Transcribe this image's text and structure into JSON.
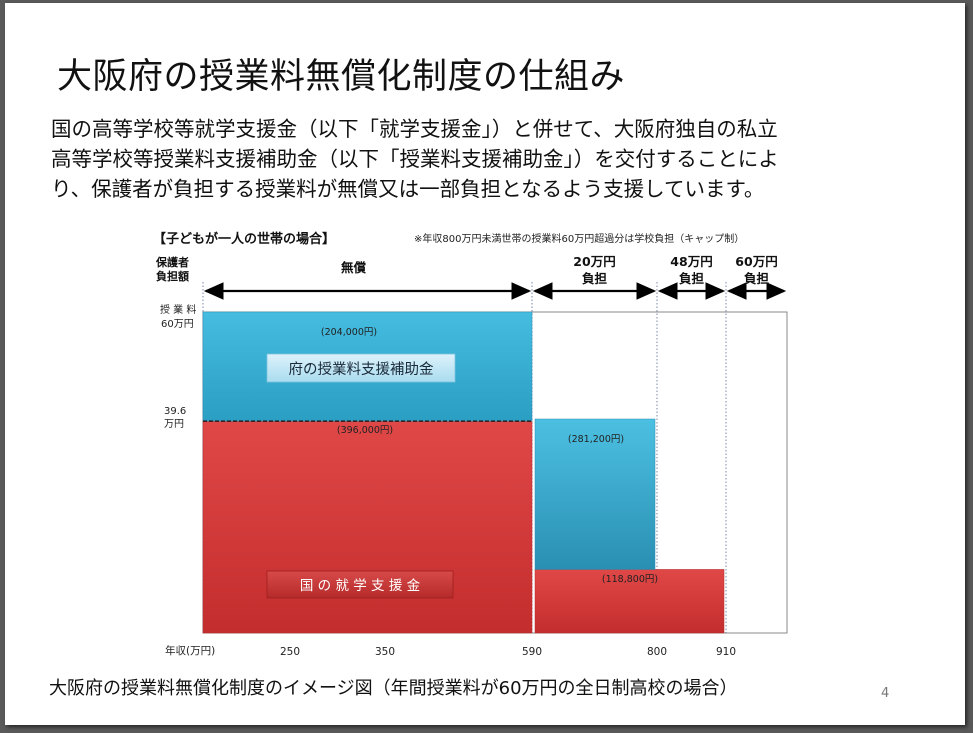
{
  "slide": {
    "title": "大阪府の授業料無償化制度の仕組み",
    "description": [
      "国の高等学校等就学支援金（以下「就学支援金」）と併せて、大阪府独自の私立",
      "高等学校等授業料支援補助金（以下「授業料支援補助金」）を交付することによ",
      "り、保護者が負担する授業料が無償又は一部負担となるよう支援しています。"
    ],
    "caption": "大阪府の授業料無償化制度のイメージ図（年間授業料が60万円の全日制高校の場合）",
    "page_number": "4"
  },
  "colors": {
    "subsidy_blue": "#3ab0d4",
    "national_red": "#d63a3a",
    "frame": "#7a7a7a"
  },
  "chart_data": {
    "type": "bar",
    "subtitle": "【子どもが一人の世帯の場合】",
    "note": "※年収800万円未満世帯の授業料60万円超過分は学校負担（キャップ制）",
    "ylabel_top": "保護者",
    "ylabel_bottom": "負担額",
    "xlabel": "年収(万円)",
    "x_range": [
      0,
      990
    ],
    "y_range": [
      0,
      60
    ],
    "x_ticks": [
      "250",
      "350",
      "590",
      "800",
      "910"
    ],
    "y_label_top": [
      "授 業 料",
      "60万円"
    ],
    "y_label_mid": [
      "39.6",
      "万円"
    ],
    "burden_bands": [
      {
        "from": 0,
        "to": 590,
        "lines": [
          "無償"
        ]
      },
      {
        "from": 590,
        "to": 800,
        "lines": [
          "20万円",
          "負担"
        ]
      },
      {
        "from": 800,
        "to": 910,
        "lines": [
          "48万円",
          "負担"
        ]
      },
      {
        "from": 910,
        "to": 990,
        "lines": [
          "60万円",
          "負担"
        ]
      }
    ],
    "series": [
      {
        "name": "国の就学支援金",
        "segments": [
          {
            "from": 0,
            "to": 590,
            "value": 39.6,
            "label": "(396,000円)"
          },
          {
            "from": 590,
            "to": 910,
            "value": 11.88,
            "label": "(118,800円)"
          }
        ]
      },
      {
        "name": "府の授業料支援補助金",
        "segments": [
          {
            "from": 0,
            "to": 590,
            "base": 39.6,
            "value": 20.4,
            "label": "(204,000円)"
          },
          {
            "from": 590,
            "to": 800,
            "base": 11.88,
            "value": 28.12,
            "label": "(281,200円)"
          }
        ]
      }
    ],
    "legend_labels": {
      "national": "国 の 就 学 支 援 金",
      "prefecture": "府の授業料支援補助金"
    }
  }
}
